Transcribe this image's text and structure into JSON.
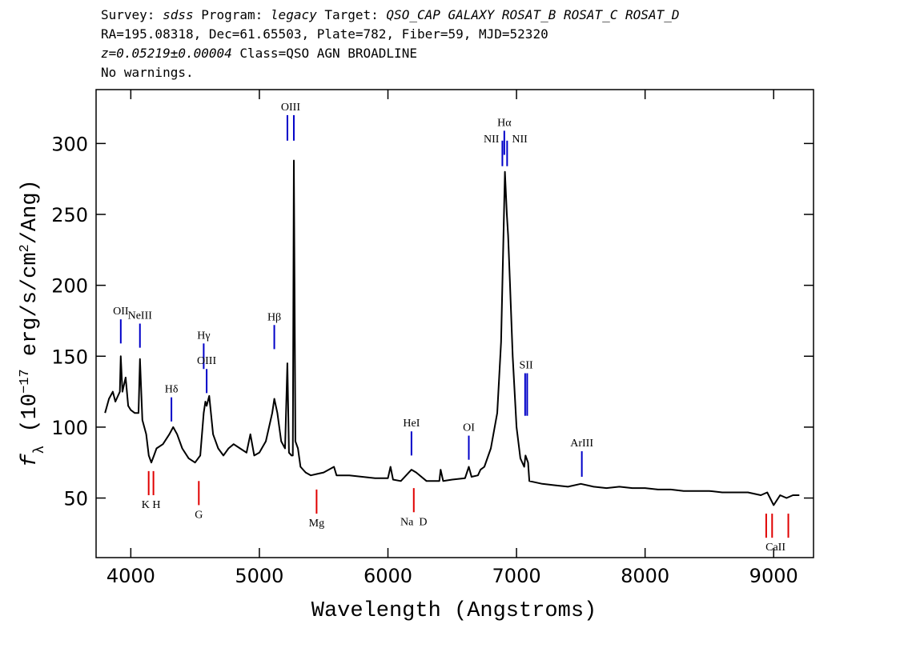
{
  "chart_data": {
    "type": "line",
    "header": [
      [
        {
          "text": "Survey: "
        },
        {
          "text": "sdss",
          "italic": true
        },
        {
          "text": " Program: "
        },
        {
          "text": "legacy",
          "italic": true
        },
        {
          "text": " Target: "
        },
        {
          "text": "QSO_CAP GALAXY ROSAT_B ROSAT_C ROSAT_D",
          "italic": true
        }
      ],
      [
        {
          "text": "RA=195.08318, Dec=61.65503, Plate=782, Fiber=59, MJD=52320"
        }
      ],
      [
        {
          "text": "z=0.05219±0.00004",
          "italic": true
        },
        {
          "text": " Class=QSO AGN BROADLINE"
        }
      ],
      [
        {
          "text": "No warnings."
        }
      ]
    ],
    "xlabel": "Wavelength (Angstroms)",
    "ylabel": [
      {
        "text": "f",
        "italic": true
      },
      {
        "text": "λ",
        "shift": "sub"
      },
      {
        "text": " (10"
      },
      {
        "text": "−17",
        "shift": "sup"
      },
      {
        "text": " erg/s/cm"
      },
      {
        "text": "2",
        "shift": "sup"
      },
      {
        "text": "/Ang)"
      }
    ],
    "color": "#000000",
    "x": [
      3800,
      3830,
      3860,
      3880,
      3900,
      3915,
      3922,
      3935,
      3960,
      3980,
      4000,
      4030,
      4060,
      4071,
      4090,
      4120,
      4140,
      4160,
      4180,
      4200,
      4250,
      4300,
      4330,
      4360,
      4400,
      4450,
      4500,
      4540,
      4567,
      4580,
      4590,
      4610,
      4640,
      4680,
      4720,
      4760,
      4800,
      4850,
      4900,
      4930,
      4960,
      5000,
      5050,
      5100,
      5116,
      5140,
      5170,
      5200,
      5218,
      5230,
      5250,
      5260,
      5268,
      5280,
      5300,
      5320,
      5360,
      5400,
      5450,
      5500,
      5580,
      5600,
      5700,
      5800,
      5900,
      6000,
      6020,
      6040,
      6100,
      6183,
      6220,
      6300,
      6400,
      6410,
      6430,
      6500,
      6600,
      6629,
      6650,
      6700,
      6720,
      6750,
      6800,
      6850,
      6880,
      6900,
      6910,
      6925,
      6935,
      6950,
      6970,
      7000,
      7030,
      7060,
      7070,
      7090,
      7100,
      7200,
      7300,
      7400,
      7500,
      7600,
      7700,
      7800,
      7900,
      8000,
      8100,
      8200,
      8300,
      8400,
      8500,
      8600,
      8700,
      8800,
      8900,
      8950,
      9000,
      9050,
      9100,
      9150,
      9200
    ],
    "values": [
      110,
      120,
      125,
      118,
      122,
      125,
      150,
      125,
      135,
      115,
      112,
      110,
      110,
      148,
      105,
      95,
      80,
      75,
      80,
      85,
      88,
      95,
      100,
      95,
      85,
      78,
      75,
      80,
      110,
      118,
      115,
      122,
      95,
      85,
      80,
      85,
      88,
      85,
      82,
      95,
      80,
      82,
      90,
      110,
      120,
      110,
      90,
      85,
      145,
      82,
      80,
      80,
      288,
      90,
      85,
      72,
      68,
      66,
      67,
      68,
      72,
      66,
      66,
      65,
      64,
      64,
      72,
      63,
      62,
      70,
      68,
      62,
      62,
      70,
      62,
      63,
      64,
      72,
      65,
      66,
      70,
      72,
      85,
      110,
      160,
      240,
      280,
      250,
      235,
      200,
      150,
      100,
      78,
      72,
      80,
      75,
      62,
      60,
      59,
      58,
      60,
      58,
      57,
      58,
      57,
      57,
      56,
      56,
      55,
      55,
      55,
      54,
      54,
      54,
      52,
      54,
      45,
      52,
      50,
      52,
      52
    ],
    "xlim": [
      3730,
      9310
    ],
    "ylim": [
      8,
      338
    ],
    "xticks": [
      4000,
      5000,
      6000,
      7000,
      8000,
      9000
    ],
    "yticks": [
      50,
      100,
      150,
      200,
      250,
      300
    ],
    "line_groups": [
      {
        "label": "OII",
        "color": "#0000c8",
        "x": [
          3922
        ],
        "ylim": [
          159,
          176
        ],
        "side": "top"
      },
      {
        "label": "NeIII",
        "color": "#0000c8",
        "x": [
          4071
        ],
        "ylim": [
          156,
          173
        ],
        "side": "top"
      },
      {
        "label": "Hδ",
        "color": "#0000c8",
        "x": [
          4316
        ],
        "ylim": [
          104,
          121
        ],
        "side": "top"
      },
      {
        "label": "Hγ",
        "color": "#0000c8",
        "x": [
          4567
        ],
        "ylim": [
          141,
          159
        ],
        "side": "top"
      },
      {
        "label": "OIII",
        "color": "#0000c8",
        "x": [
          4590
        ],
        "ylim": [
          124,
          141
        ],
        "side": "top"
      },
      {
        "label": "Hβ",
        "color": "#0000c8",
        "x": [
          5116
        ],
        "ylim": [
          155,
          172
        ],
        "side": "top"
      },
      {
        "label": "OIII",
        "color": "#0000c8",
        "x": [
          5218,
          5268
        ],
        "ylim": [
          302,
          320
        ],
        "side": "top"
      },
      {
        "label": "HeI",
        "color": "#0000c8",
        "x": [
          6183
        ],
        "ylim": [
          80,
          97
        ],
        "side": "top"
      },
      {
        "label": "OI",
        "color": "#0000c8",
        "x": [
          6629
        ],
        "ylim": [
          77,
          94
        ],
        "side": "top"
      },
      {
        "label": "NII",
        "color": "#0000c8",
        "x": [
          6890
        ],
        "ylim": [
          284,
          302
        ],
        "side": "top-left"
      },
      {
        "label": "Hα",
        "color": "#0000c8",
        "x": [
          6905
        ],
        "ylim": [
          292,
          309
        ],
        "side": "top"
      },
      {
        "label": "NII",
        "color": "#0000c8",
        "x": [
          6927
        ],
        "ylim": [
          284,
          302
        ],
        "side": "top-right"
      },
      {
        "label": "SII",
        "color": "#0000c8",
        "x": [
          7067,
          7083
        ],
        "ylim": [
          108,
          138
        ],
        "side": "top"
      },
      {
        "label": "ArIII",
        "color": "#0000c8",
        "x": [
          7508
        ],
        "ylim": [
          65,
          83
        ],
        "side": "top"
      },
      {
        "label": "K H",
        "color": "#e00000",
        "x": [
          4139,
          4176
        ],
        "ylim": [
          52,
          69
        ],
        "side": "bottom"
      },
      {
        "label": "G",
        "color": "#e00000",
        "x": [
          4529
        ],
        "ylim": [
          45,
          62
        ],
        "side": "bottom"
      },
      {
        "label": "Mg",
        "color": "#e00000",
        "x": [
          5445
        ],
        "ylim": [
          39,
          56
        ],
        "side": "bottom"
      },
      {
        "label": "Na  D",
        "color": "#e00000",
        "x": [
          6201
        ],
        "ylim": [
          40,
          57
        ],
        "side": "bottom"
      },
      {
        "label": "CaII",
        "color": "#e00000",
        "x": [
          8942,
          8988,
          9114
        ],
        "ylim": [
          22,
          39
        ],
        "side": "bottom"
      }
    ]
  }
}
